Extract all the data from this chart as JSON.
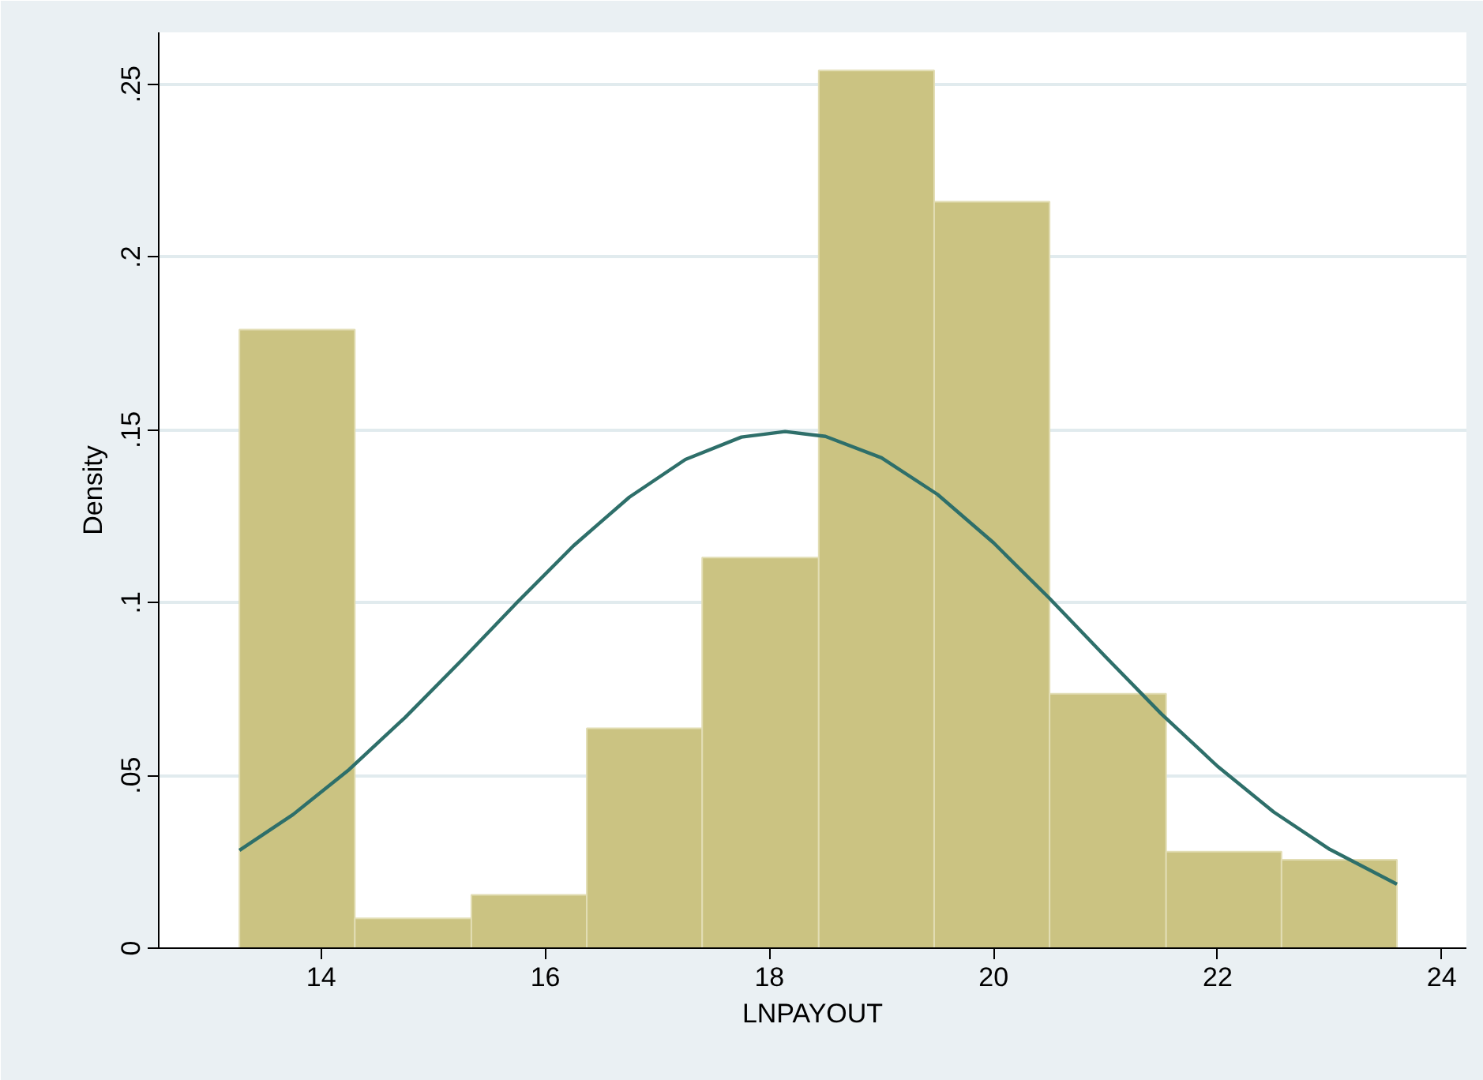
{
  "chart_data": {
    "type": "histogram",
    "xlabel": "LNPAYOUT",
    "ylabel": "Density",
    "bins": [
      13.27,
      14.3,
      15.34,
      16.37,
      17.4,
      18.44,
      19.47,
      20.5,
      21.54,
      22.57,
      23.6
    ],
    "values": [
      0.179,
      0.0086,
      0.0154,
      0.0636,
      0.113,
      0.254,
      0.216,
      0.0736,
      0.0279,
      0.0256
    ],
    "color": "#cbc382",
    "xlim": [
      12.55,
      24.22
    ],
    "ylim": [
      0,
      0.265
    ],
    "xticks": [
      14,
      16,
      18,
      20,
      22,
      24
    ],
    "yticks": [
      {
        "value": 0,
        "label": "0"
      },
      {
        "value": 0.05,
        "label": ".05"
      },
      {
        "value": 0.1,
        "label": ".1"
      },
      {
        "value": 0.15,
        "label": ".15"
      },
      {
        "value": 0.2,
        "label": ".2"
      },
      {
        "value": 0.25,
        "label": ".25"
      }
    ],
    "grid": "y",
    "series": [
      {
        "type": "line",
        "color": "#2e6f6a",
        "x": [
          13.27,
          13.75,
          14.25,
          14.75,
          15.25,
          15.75,
          16.25,
          16.75,
          17.25,
          17.75,
          18.14,
          18.5,
          19,
          19.5,
          20,
          20.5,
          21,
          21.5,
          22,
          22.5,
          23,
          23.6
        ],
        "values": [
          0.0283,
          0.0387,
          0.0517,
          0.0668,
          0.0832,
          0.1001,
          0.1164,
          0.1305,
          0.1414,
          0.1479,
          0.1495,
          0.1481,
          0.1419,
          0.1313,
          0.1173,
          0.1012,
          0.0843,
          0.0677,
          0.0526,
          0.0394,
          0.0286,
          0.0185
        ]
      }
    ]
  }
}
